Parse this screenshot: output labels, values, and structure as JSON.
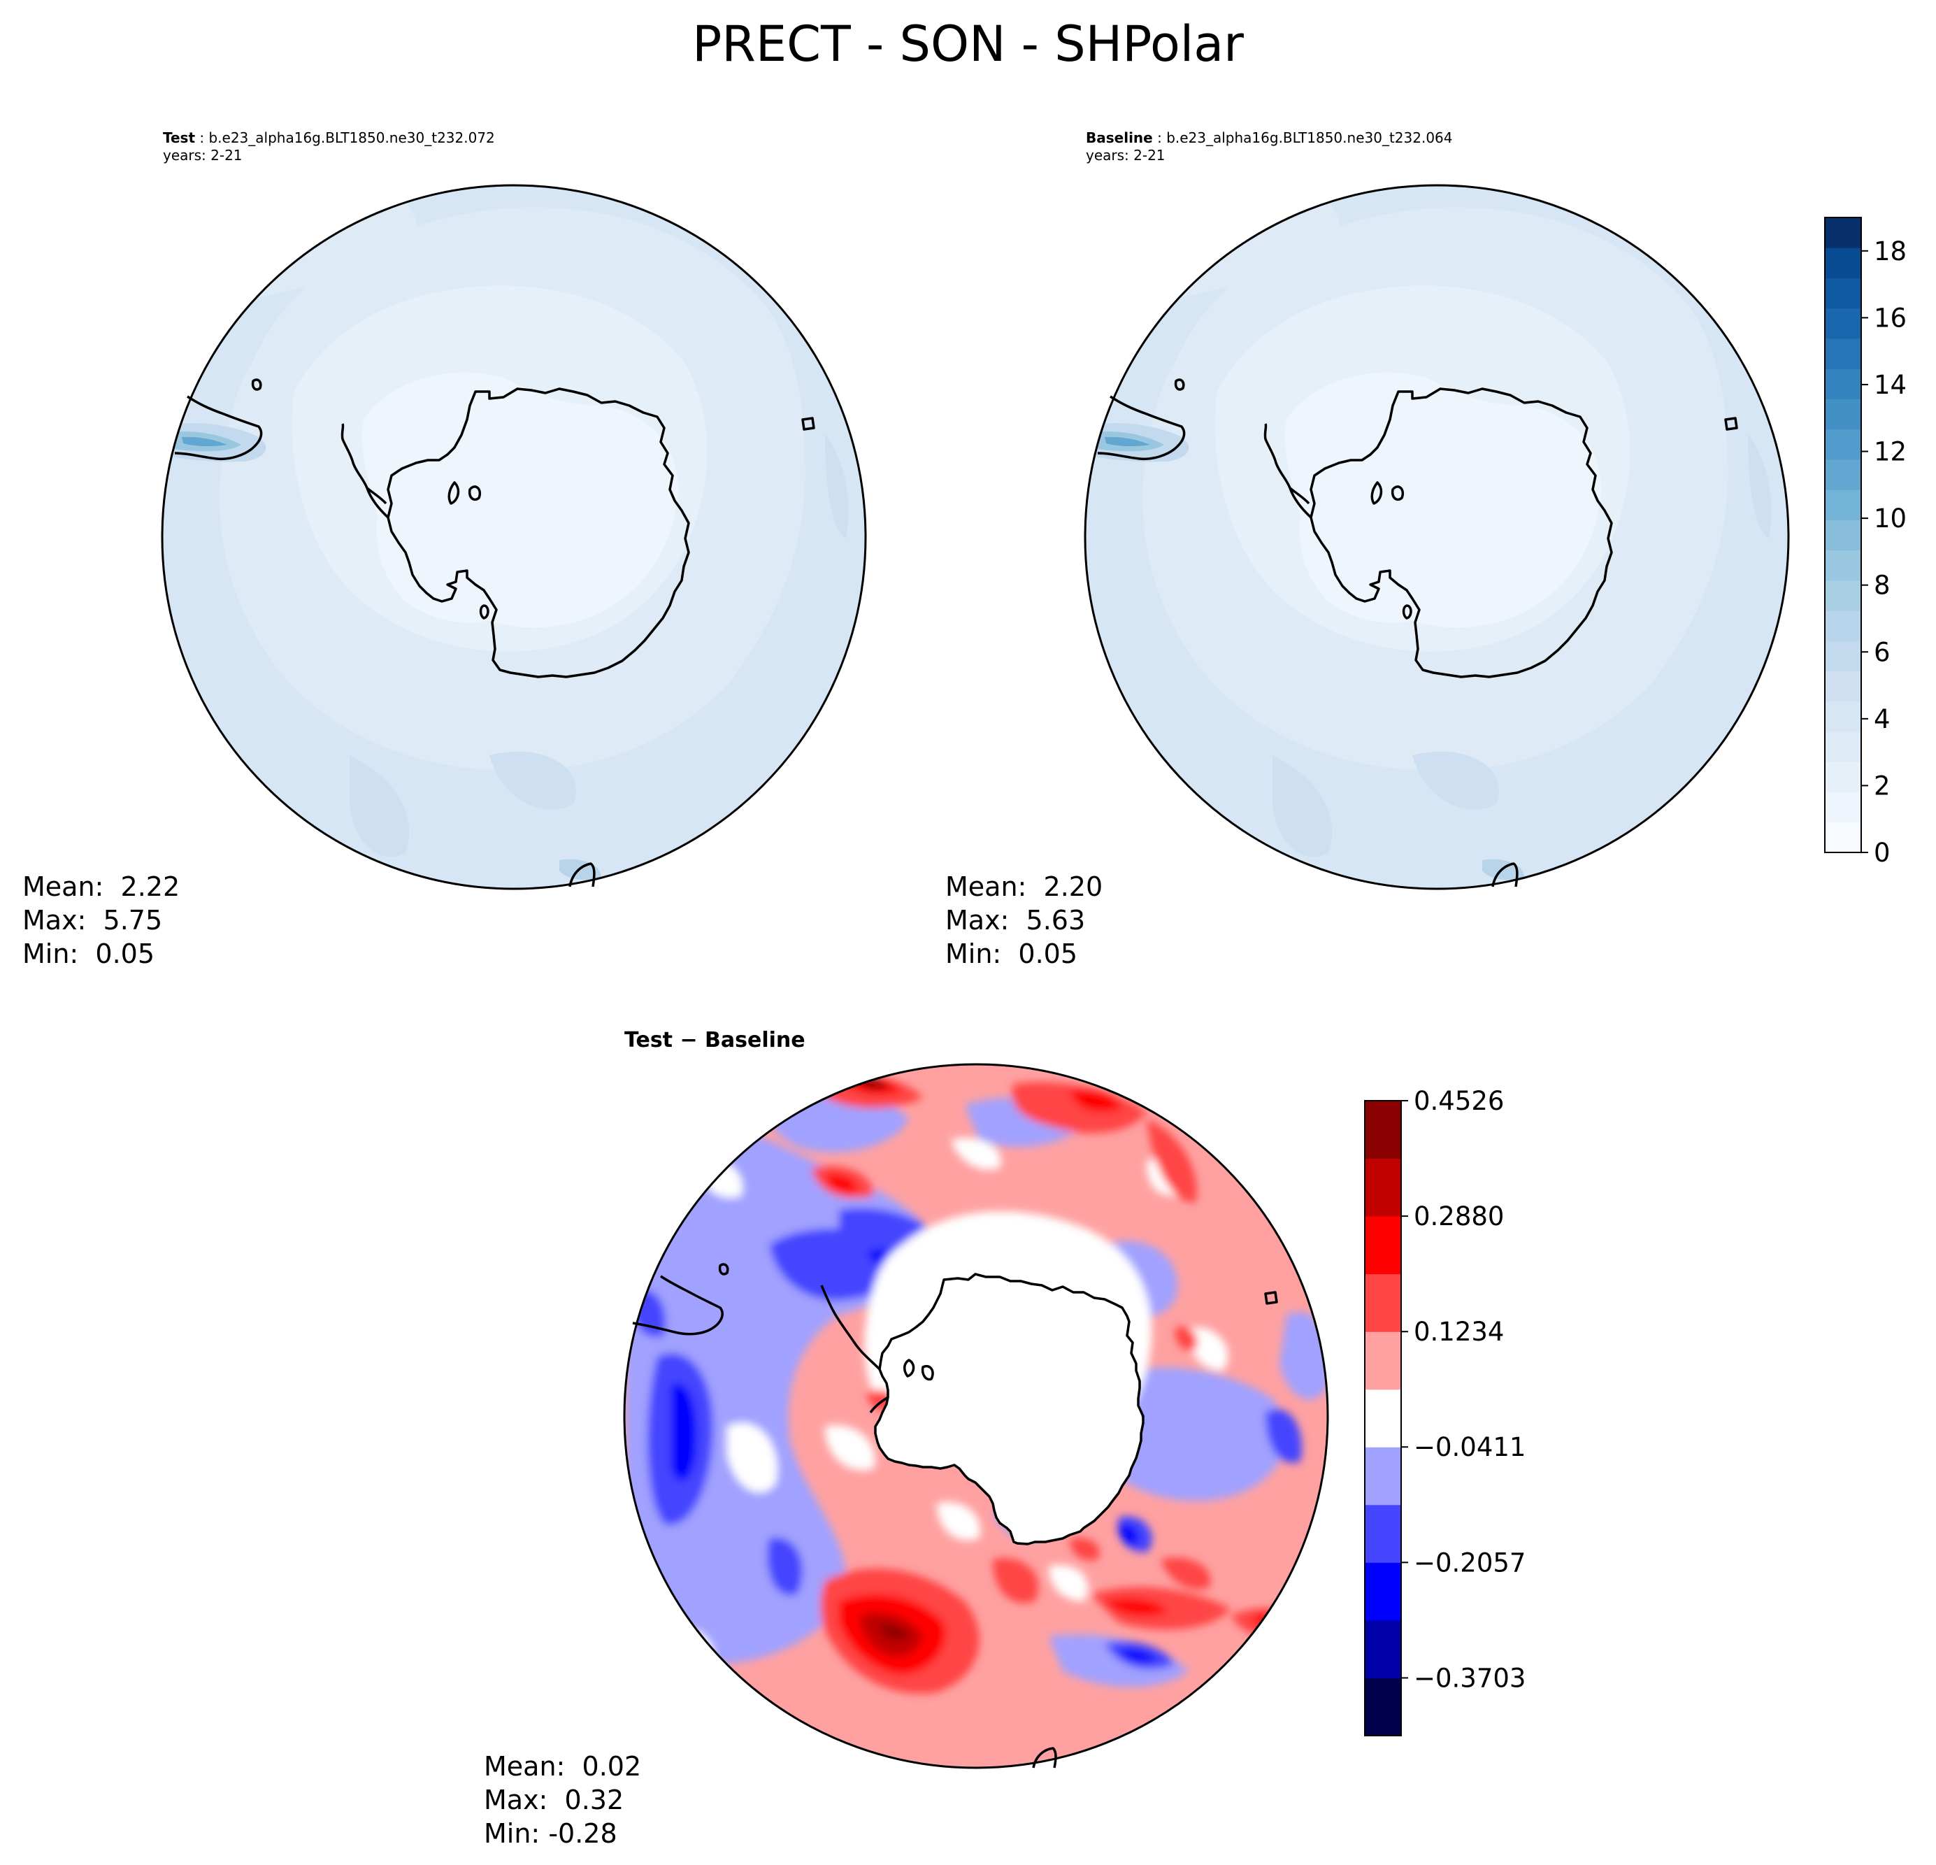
{
  "figure": {
    "title": "PRECT - SON - SHPolar"
  },
  "panels": {
    "test": {
      "label": "Test",
      "case": "b.e23_alpha16g.BLT1850.ne30_t232.072",
      "years": "years: 2-21",
      "stats": {
        "mean_label": "Mean:",
        "mean": "2.22",
        "max_label": "Max:",
        "max": "5.75",
        "min_label": "Min:",
        "min": "0.05"
      }
    },
    "baseline": {
      "label": "Baseline",
      "case": "b.e23_alpha16g.BLT1850.ne30_t232.064",
      "years": "years: 2-21",
      "stats": {
        "mean_label": "Mean:",
        "mean": "2.20",
        "max_label": "Max:",
        "max": "5.63",
        "min_label": "Min:",
        "min": "0.05"
      }
    },
    "diff": {
      "title": "Test − Baseline",
      "stats": {
        "mean_label": "Mean:",
        "mean": "0.02",
        "max_label": "Max:",
        "max": "0.32",
        "min_label": "Min:",
        "min": "-0.28"
      }
    }
  },
  "chart_data": [
    {
      "type": "heatmap",
      "projection": "south-polar-stereographic",
      "panels": [
        "Test",
        "Baseline"
      ],
      "colorbar": {
        "colormap": "Blues",
        "range": [
          0,
          19
        ],
        "ticks": [
          "0",
          "2",
          "4",
          "6",
          "8",
          "10",
          "12",
          "14",
          "16",
          "18"
        ],
        "levels": 19,
        "colors": [
          "#f7fbff",
          "#eff5fc",
          "#e6f0f9",
          "#deebf7",
          "#d6e6f4",
          "#cddff1",
          "#c3daee",
          "#b7d4ea",
          "#a9cfe5",
          "#9ac7e0",
          "#88bedc",
          "#73b3d8",
          "#61a7d2",
          "#519ccc",
          "#4290c5",
          "#3383be",
          "#2575b7",
          "#1967ad",
          "#0e59a2",
          "#084b93",
          "#08306b"
        ]
      },
      "stats": {
        "Test": {
          "mean": 2.22,
          "max": 5.75,
          "min": 0.05
        },
        "Baseline": {
          "mean": 2.2,
          "max": 5.63,
          "min": 0.05
        }
      },
      "region": "Southern Hemisphere polar (Antarctica)"
    },
    {
      "type": "heatmap",
      "projection": "south-polar-stereographic",
      "title": "Test − Baseline",
      "colorbar": {
        "colormap": "seismic",
        "range": [
          -0.4526,
          0.4526
        ],
        "ticks": [
          "0.4526",
          "0.2880",
          "0.1234",
          "−0.0411",
          "−0.2057",
          "−0.3703"
        ],
        "bounds": [
          -0.4526,
          -0.3703,
          -0.288,
          -0.2057,
          -0.1234,
          -0.0411,
          0.0411,
          0.1234,
          0.2057,
          0.288,
          0.3703,
          0.4526
        ],
        "colors": [
          "#00004c",
          "#0000a8",
          "#0000ff",
          "#4545ff",
          "#a1a1ff",
          "#ffffff",
          "#ffa1a1",
          "#ff4545",
          "#ff0000",
          "#c10000",
          "#8b0000"
        ]
      },
      "stats": {
        "mean": 0.02,
        "max": 0.32,
        "min": -0.28
      }
    }
  ]
}
